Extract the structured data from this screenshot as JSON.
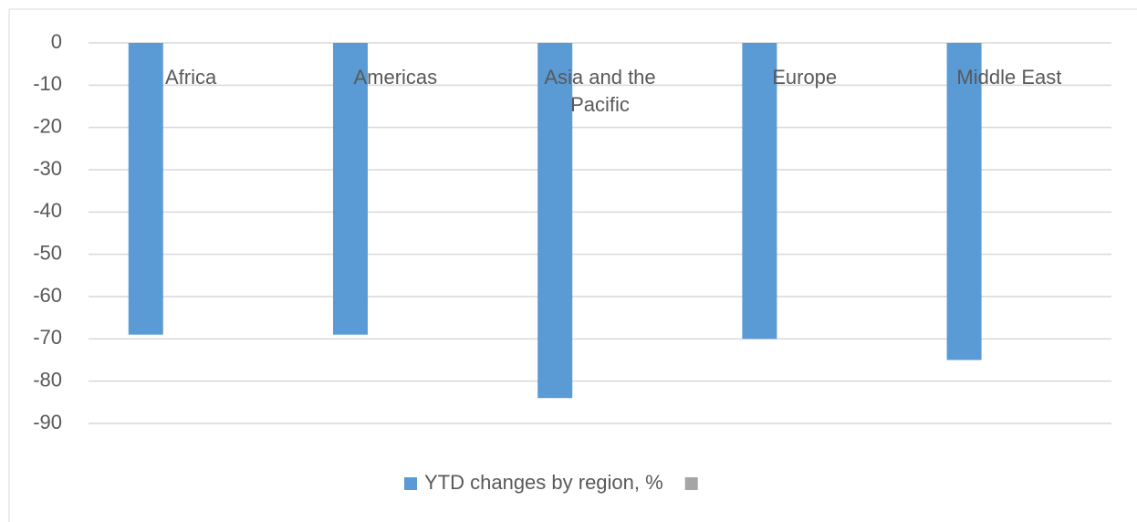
{
  "chart_data": {
    "type": "bar",
    "categories": [
      "Africa",
      "Americas",
      "Asia and the Pacific",
      "Europe",
      "Middle East"
    ],
    "series": [
      {
        "name": "YTD changes by region, %",
        "color": "#5b9bd5",
        "values": [
          -69,
          -69,
          -84,
          -70,
          -75
        ]
      },
      {
        "color": "#a5a5a5",
        "values": [
          null,
          null,
          null,
          null,
          null
        ]
      }
    ],
    "ylim": [
      -90,
      0
    ],
    "yticks": [
      0,
      -10,
      -20,
      -30,
      -40,
      -50,
      -60,
      -70,
      -80,
      -90
    ],
    "grid": true,
    "legend": "bottom"
  }
}
